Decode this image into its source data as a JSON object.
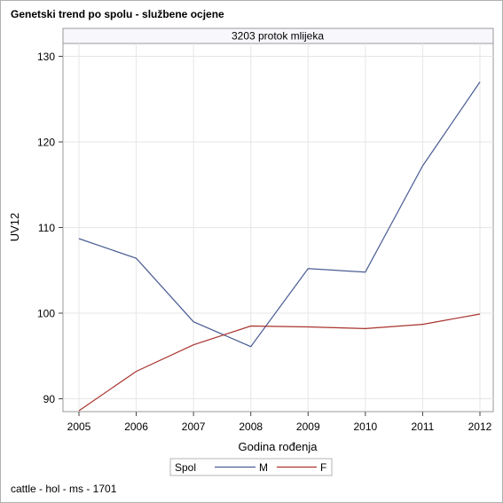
{
  "header": {
    "title": "Genetski trend po spolu - službene ocjene"
  },
  "footer": {
    "text": "cattle - hol - ms - 1701"
  },
  "chart_data": {
    "type": "line",
    "panel_title": "3203 protok mlijeka",
    "xlabel": "Godina rođenja",
    "ylabel": "UV12",
    "x": [
      2005,
      2006,
      2007,
      2008,
      2009,
      2010,
      2011,
      2012
    ],
    "ylim": [
      88.5,
      131.5
    ],
    "yticks": [
      90,
      100,
      110,
      120,
      130
    ],
    "grid": true,
    "legend": {
      "title": "Spol",
      "placement": "bottom-center"
    },
    "series": [
      {
        "name": "M",
        "color": "#4a5d94",
        "values": [
          108.7,
          106.4,
          99.0,
          96.1,
          105.2,
          104.8,
          117.2,
          127.0
        ]
      },
      {
        "name": "F",
        "color": "#a8332d",
        "values": [
          88.6,
          93.2,
          96.3,
          98.5,
          98.4,
          98.2,
          98.7,
          99.9
        ]
      }
    ]
  }
}
